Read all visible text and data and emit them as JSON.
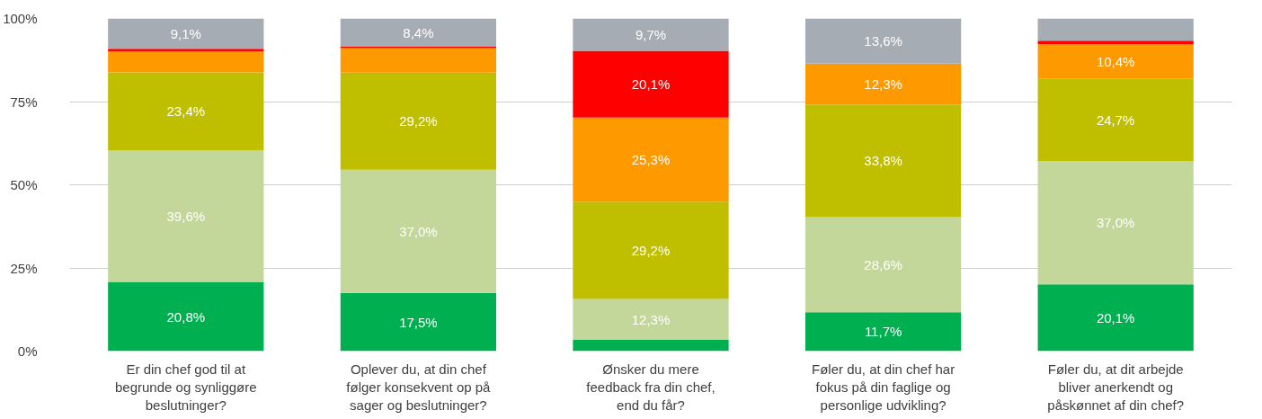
{
  "chart_data": {
    "type": "bar",
    "stacked": true,
    "categories": [
      "Er din chef god til at\nbegrunde og synliggøre\nbeslutninger?",
      "Oplever du, at din chef\nfølger konsekvent op på\nsager og beslutninger?",
      "Ønsker du mere\nfeedback fra din chef,\nend du får?",
      "Føler du, at din chef har\nfokus på din faglige og\npersonlige udvikling?",
      "Føler du, at dit arbejde\nbliver anerkendt og\npåskønnet af din chef?"
    ],
    "series": [
      {
        "color": "#00b050",
        "values": [
          20.8,
          17.5,
          3.4,
          11.7,
          20.1
        ],
        "value_labels": [
          "20,8%",
          "17,5%",
          null,
          "11,7%",
          "20,1%"
        ]
      },
      {
        "color": "#c4d79b",
        "values": [
          39.6,
          37.0,
          12.3,
          28.6,
          37.0
        ],
        "value_labels": [
          "39,6%",
          "37,0%",
          "12,3%",
          "28,6%",
          "37,0%"
        ]
      },
      {
        "color": "#bfbf00",
        "values": [
          23.4,
          29.2,
          29.2,
          33.8,
          24.7
        ],
        "value_labels": [
          "23,4%",
          "29,2%",
          "29,2%",
          "33,8%",
          "24,7%"
        ]
      },
      {
        "color": "#ff9900",
        "values": [
          6.3,
          7.4,
          25.3,
          12.3,
          10.4
        ],
        "value_labels": [
          null,
          null,
          "25,3%",
          "12,3%",
          "10,4%"
        ]
      },
      {
        "color": "#ff0000",
        "values": [
          0.8,
          0.5,
          20.1,
          0,
          1.1
        ],
        "value_labels": [
          null,
          null,
          "20,1%",
          null,
          null
        ]
      },
      {
        "color": "#a6acb3",
        "values": [
          9.1,
          8.4,
          9.7,
          13.6,
          6.9
        ],
        "value_labels": [
          "9,1%",
          "8,4%",
          "9,7%",
          "13,6%",
          null
        ]
      }
    ],
    "ylim": [
      0,
      100
    ],
    "yticks": [
      {
        "value": 0,
        "label": "0%"
      },
      {
        "value": 25,
        "label": "25%"
      },
      {
        "value": 50,
        "label": "50%"
      },
      {
        "value": 75,
        "label": "75%"
      },
      {
        "value": 100,
        "label": "100%"
      }
    ],
    "grid": "y"
  }
}
